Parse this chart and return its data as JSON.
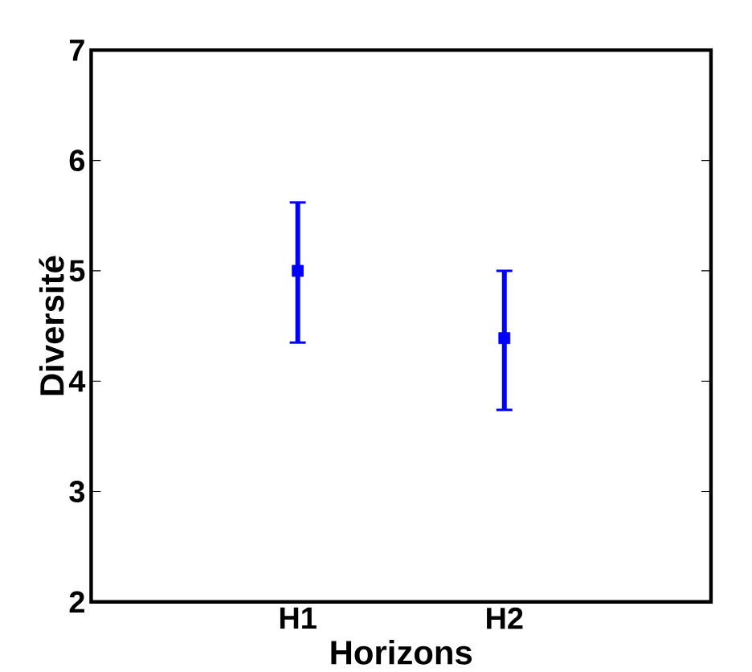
{
  "chart_data": {
    "type": "scatter",
    "xlabel": "Horizons",
    "ylabel": "Diversité",
    "categories": [
      "H1",
      "H2"
    ],
    "series": [
      {
        "color": "#0000ff",
        "values": [
          5.0,
          4.39
        ],
        "errors": [
          [
            4.35,
            5.62
          ],
          [
            3.74,
            5.0
          ]
        ]
      }
    ],
    "ylim": [
      2,
      7
    ],
    "yticks": [
      2,
      3,
      4,
      5,
      6,
      7
    ],
    "marker": "square",
    "grid": false
  }
}
